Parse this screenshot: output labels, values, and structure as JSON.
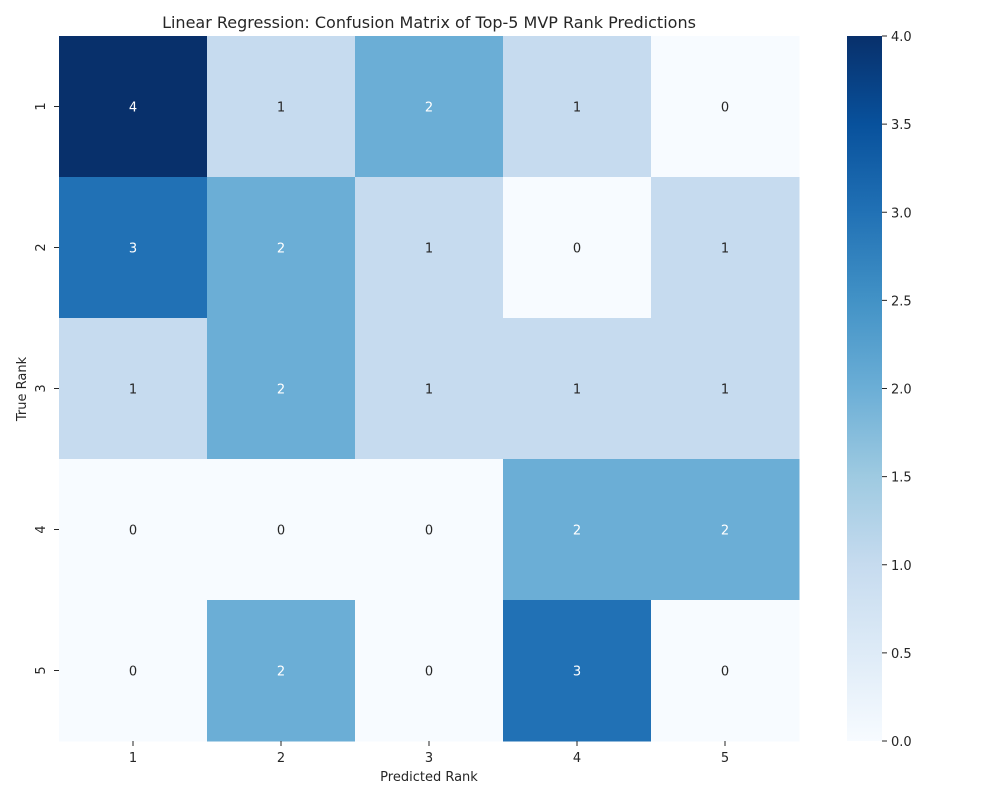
{
  "chart_data": {
    "type": "heatmap",
    "title": "Linear Regression: Confusion Matrix of Top-5 MVP Rank Predictions",
    "xlabel": "Predicted Rank",
    "ylabel": "True Rank",
    "x_categories": [
      "1",
      "2",
      "3",
      "4",
      "5"
    ],
    "y_categories": [
      "1",
      "2",
      "3",
      "4",
      "5"
    ],
    "values": [
      [
        4,
        1,
        2,
        1,
        0
      ],
      [
        3,
        2,
        1,
        0,
        1
      ],
      [
        1,
        2,
        1,
        1,
        1
      ],
      [
        0,
        0,
        0,
        2,
        2
      ],
      [
        0,
        2,
        0,
        3,
        0
      ]
    ],
    "colorbar": {
      "min": 0,
      "max": 4,
      "ticks": [
        "0.0",
        "0.5",
        "1.0",
        "1.5",
        "2.0",
        "2.5",
        "3.0",
        "3.5",
        "4.0"
      ],
      "colormap": "Blues"
    },
    "colors": {
      "low": "#f7fbff",
      "high": "#08306b",
      "annotation_dark": "#262626",
      "annotation_light": "#ffffff"
    }
  }
}
